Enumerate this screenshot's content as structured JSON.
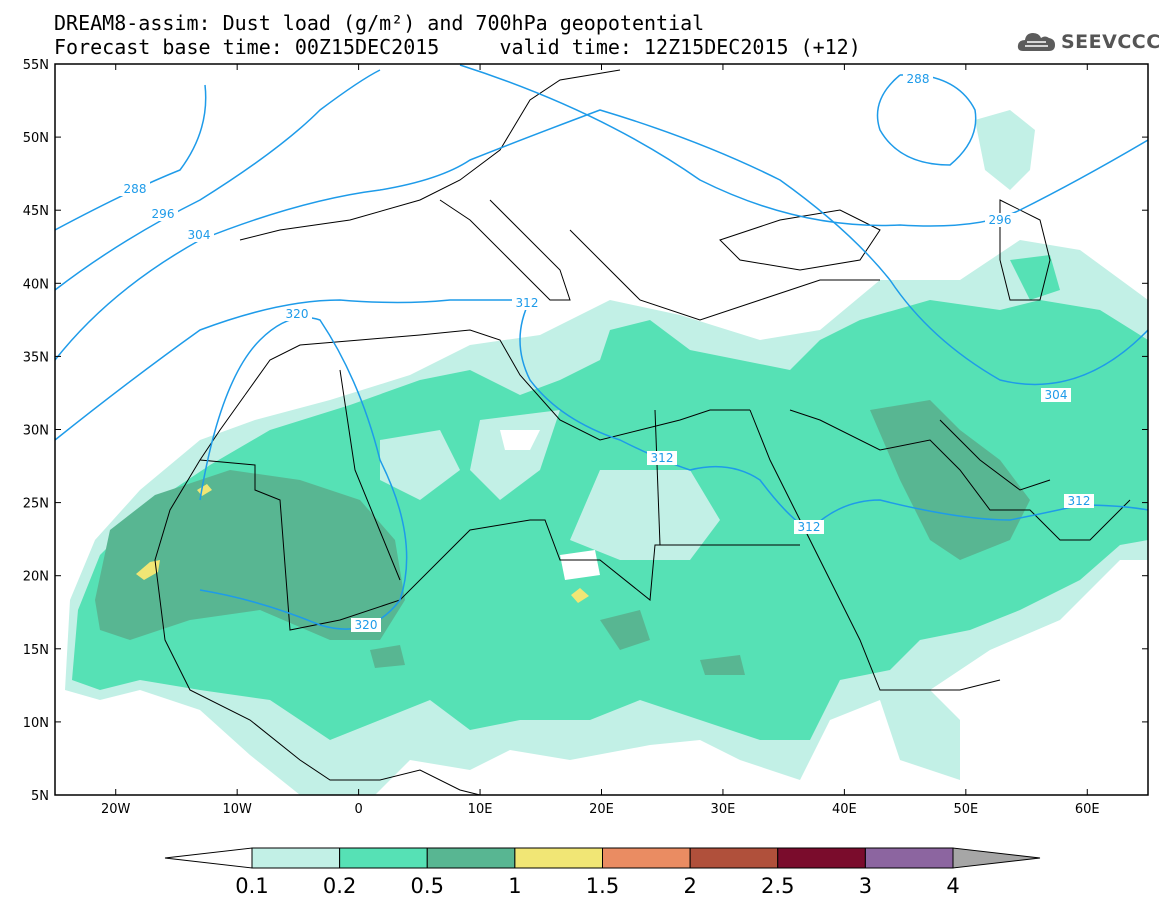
{
  "title": {
    "line1": "DREAM8-assim: Dust load (g/m²) and 700hPa geopotential",
    "line2": "Forecast base time: 00Z15DEC2015     valid time: 12Z15DEC2015 (+12)"
  },
  "logo": {
    "text": "SEEVCCC",
    "icon": "cloud-logo-icon"
  },
  "axes": {
    "lon_labels": [
      "20W",
      "10W",
      "0",
      "10E",
      "20E",
      "30E",
      "40E",
      "50E",
      "60E"
    ],
    "lat_labels": [
      "55N",
      "50N",
      "45N",
      "40N",
      "35N",
      "30N",
      "25N",
      "20N",
      "15N",
      "10N",
      "5N"
    ],
    "lon_values": [
      -20,
      -10,
      0,
      10,
      20,
      30,
      40,
      50,
      60
    ],
    "lat_values": [
      55,
      50,
      45,
      40,
      35,
      30,
      25,
      20,
      15,
      10,
      5
    ],
    "lon_range": [
      -25,
      65
    ],
    "lat_range": [
      5,
      55
    ]
  },
  "colorbar": {
    "labels": [
      "0.1",
      "0.2",
      "0.5",
      "1",
      "1.5",
      "2",
      "2.5",
      "3",
      "4"
    ],
    "colors": [
      "#c2f0e6",
      "#56e1b5",
      "#58b692",
      "#f1e675",
      "#ea8c62",
      "#b0503b",
      "#7a0c2c",
      "#8c65a0",
      "#a6a6a6"
    ]
  },
  "contours": {
    "color": "#1e9be9",
    "labels": [
      "288",
      "296",
      "304",
      "320",
      "312",
      "312",
      "312",
      "320",
      "288",
      "296",
      "304",
      "312"
    ]
  }
}
